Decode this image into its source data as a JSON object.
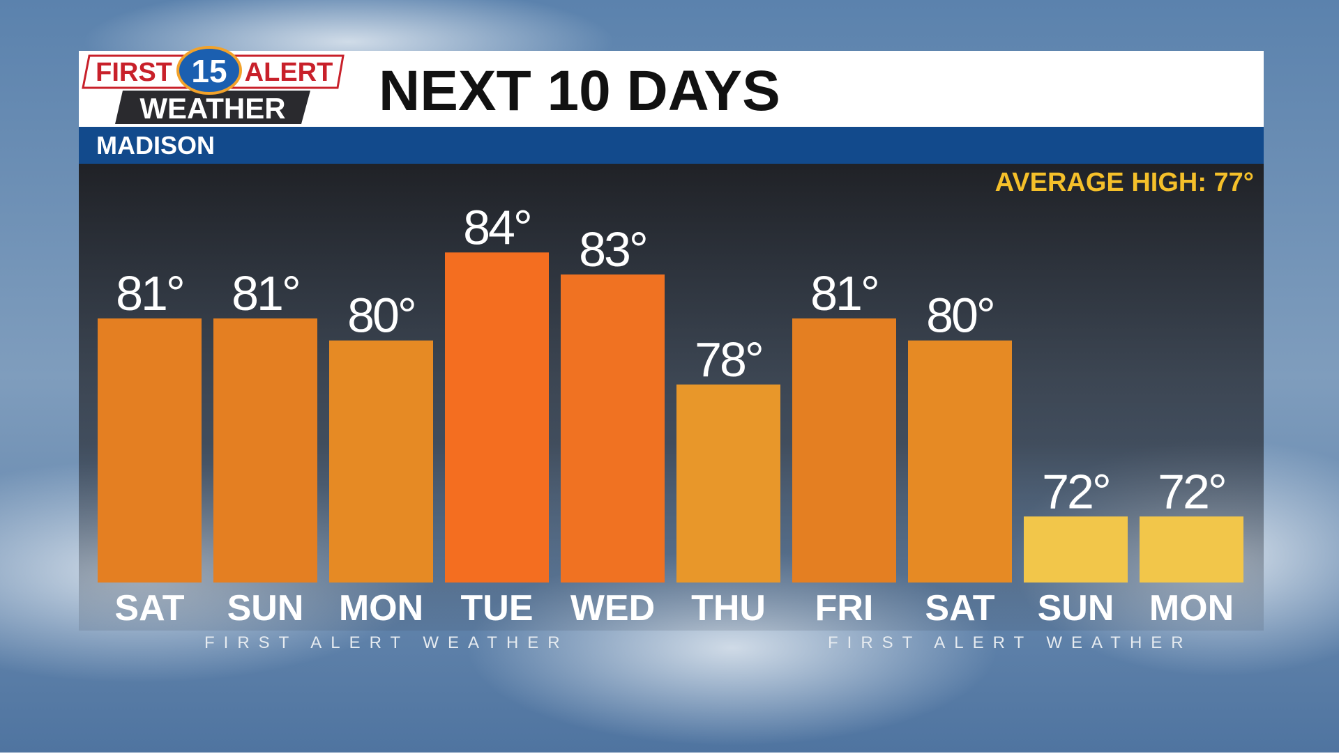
{
  "branding": {
    "logo_first": "FIRST",
    "logo_channel": "15",
    "logo_alert": "ALERT",
    "logo_weather": "WEATHER",
    "watermark": [
      "FIRST ALERT WEATHER",
      "FIRST ALERT WEATHER"
    ]
  },
  "chart_data": {
    "type": "bar",
    "title": "NEXT 10 DAYS",
    "subtitle": "MADISON",
    "annotation": "AVERAGE HIGH: 77°",
    "categories": [
      "SAT",
      "SUN",
      "MON",
      "TUE",
      "WED",
      "THU",
      "FRI",
      "SAT",
      "SUN",
      "MON"
    ],
    "values": [
      81,
      81,
      80,
      84,
      83,
      78,
      81,
      80,
      72,
      72
    ],
    "value_labels": [
      "81°",
      "81°",
      "80°",
      "84°",
      "83°",
      "78°",
      "81°",
      "80°",
      "72°",
      "72°"
    ],
    "colors": [
      "#e47f22",
      "#e47f22",
      "#e68a24",
      "#f46e20",
      "#f07222",
      "#e8972a",
      "#e47f22",
      "#e68a24",
      "#f2c64a",
      "#f2c64a"
    ],
    "ylim": [
      69,
      88
    ]
  }
}
